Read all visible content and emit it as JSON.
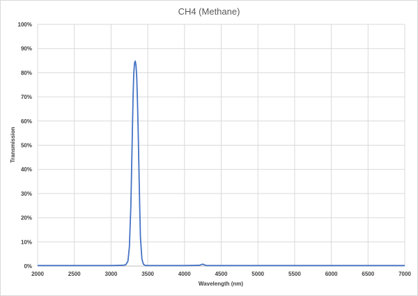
{
  "chart_data": {
    "type": "line",
    "title": "CH4 (Methane)",
    "xlabel": "Wavelength (nm)",
    "ylabel": "Transmission",
    "xlim": [
      2000,
      7000
    ],
    "ylim": [
      0,
      100
    ],
    "x_ticks": [
      "2000",
      "2500",
      "3000",
      "3500",
      "4000",
      "4500",
      "5000",
      "5500",
      "6000",
      "6500",
      "7000"
    ],
    "y_ticks": [
      "0%",
      "10%",
      "20%",
      "30%",
      "40%",
      "50%",
      "60%",
      "70%",
      "80%",
      "90%",
      "100%"
    ],
    "grid": true,
    "legend": "none",
    "line_color": "#4472c4",
    "series": [
      {
        "x": [
          2000,
          2500,
          3000,
          3150,
          3200,
          3230,
          3250,
          3270,
          3290,
          3300,
          3310,
          3320,
          3330,
          3340,
          3350,
          3360,
          3370,
          3380,
          3390,
          3400,
          3420,
          3440,
          3460,
          3500,
          3600,
          4000,
          4200,
          4230,
          4250,
          4270,
          4300,
          5000,
          6000,
          7000
        ],
        "y": [
          0.2,
          0.2,
          0.2,
          0.3,
          0.5,
          2,
          8,
          25,
          55,
          70,
          80,
          84,
          84.8,
          83,
          78,
          68,
          55,
          40,
          25,
          12,
          3,
          0.8,
          0.3,
          0.2,
          0.2,
          0.2,
          0.3,
          0.6,
          0.8,
          0.5,
          0.2,
          0.2,
          0.2,
          0.2
        ]
      }
    ]
  }
}
